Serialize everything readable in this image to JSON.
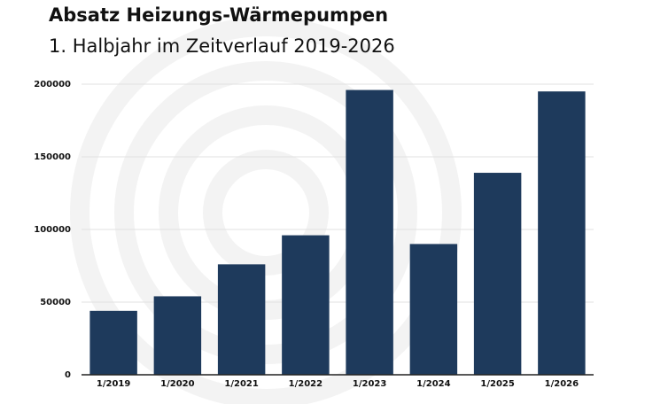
{
  "chart_data": {
    "type": "bar",
    "title": "Absatz Heizungs-Wärmepumpen",
    "subtitle": "1. Halbjahr im Zeitverlauf 2019-2026",
    "categories": [
      "1/2019",
      "1/2020",
      "1/2021",
      "1/2022",
      "1/2023",
      "1/2024",
      "1/2025",
      "1/2026"
    ],
    "values": [
      44000,
      54000,
      76000,
      96000,
      196000,
      90000,
      139000,
      195000
    ],
    "color": "#1e3a5c",
    "ylim": [
      0,
      200000
    ],
    "yticks": [
      0,
      50000,
      100000,
      150000,
      200000
    ],
    "grid": true
  }
}
